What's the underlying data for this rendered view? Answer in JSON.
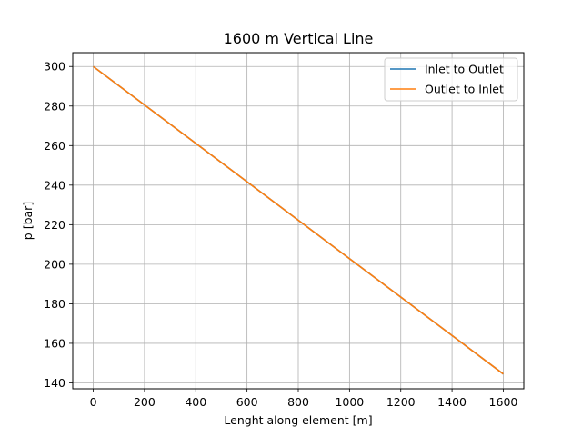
{
  "chart_data": {
    "type": "line",
    "title": "1600 m Vertical Line",
    "xlabel": "Lenght along element [m]",
    "ylabel": "p [bar]",
    "xlim": [
      -80,
      1680
    ],
    "ylim": [
      137,
      307
    ],
    "xticks": [
      0,
      200,
      400,
      600,
      800,
      1000,
      1200,
      1400,
      1600
    ],
    "yticks": [
      140,
      160,
      180,
      200,
      220,
      240,
      260,
      280,
      300
    ],
    "grid": true,
    "legend_position": "top-right",
    "series": [
      {
        "name": "Inlet to Outlet",
        "color": "#1f77b4",
        "x": [
          0,
          1600
        ],
        "y": [
          300,
          144.5
        ]
      },
      {
        "name": "Outlet to Inlet",
        "color": "#ff7f0e",
        "x": [
          0,
          1600
        ],
        "y": [
          300,
          144.5
        ]
      }
    ]
  }
}
